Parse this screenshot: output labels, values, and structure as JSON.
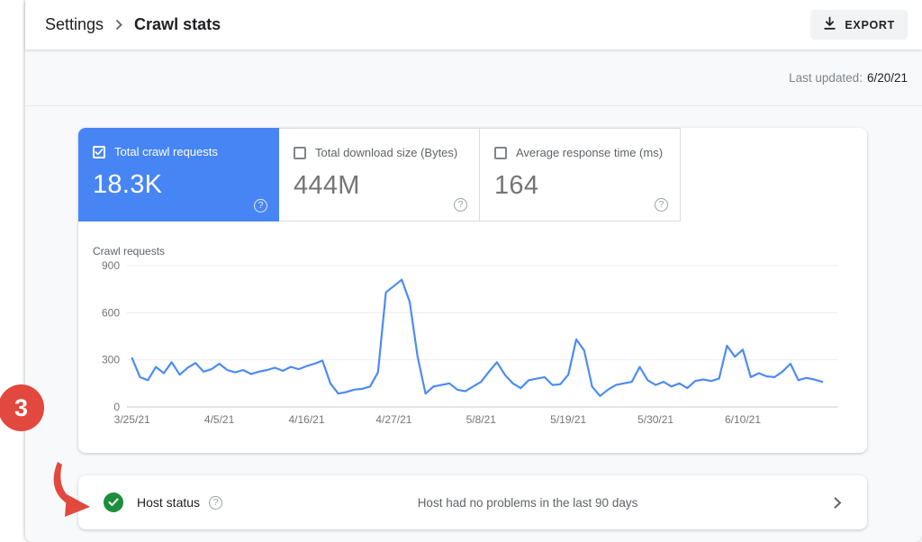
{
  "colors": {
    "accent_blue": "#4785f4",
    "chart_line_blue": "#4c8bf5",
    "success_green": "#1e8e3e",
    "annotation_red": "#e2483d",
    "page_background": "#f8f9fa"
  },
  "icons": {
    "help_glyph": "?"
  },
  "header": {
    "breadcrumb": {
      "parent": "Settings",
      "current": "Crawl stats"
    },
    "export_button": "EXPORT"
  },
  "updated": {
    "label": "Last updated:",
    "value": "6/20/21"
  },
  "metric_cards": [
    {
      "label": "Total crawl requests",
      "value": "18.3K",
      "checked": true,
      "selected": true
    },
    {
      "label": "Total download size (Bytes)",
      "value": "444M",
      "checked": false,
      "selected": false
    },
    {
      "label": "Average response time (ms)",
      "value": "164",
      "checked": false,
      "selected": false
    }
  ],
  "chart_data": {
    "type": "line",
    "title": "Crawl requests",
    "series_name": "Total crawl requests",
    "line_color": "#4c8bf5",
    "grid": true,
    "ylim": [
      0,
      900
    ],
    "yticks": [
      0,
      300,
      600,
      900
    ],
    "xticks": [
      {
        "label": "3/25/21",
        "i": 0
      },
      {
        "label": "4/5/21",
        "i": 11
      },
      {
        "label": "4/16/21",
        "i": 22
      },
      {
        "label": "4/27/21",
        "i": 33
      },
      {
        "label": "5/8/21",
        "i": 44
      },
      {
        "label": "5/19/21",
        "i": 55
      },
      {
        "label": "5/30/21",
        "i": 66
      },
      {
        "label": "6/10/21",
        "i": 77
      }
    ],
    "x": [
      "3/25/21",
      "3/26/21",
      "3/27/21",
      "3/28/21",
      "3/29/21",
      "3/30/21",
      "3/31/21",
      "4/1/21",
      "4/2/21",
      "4/3/21",
      "4/4/21",
      "4/5/21",
      "4/6/21",
      "4/7/21",
      "4/8/21",
      "4/9/21",
      "4/10/21",
      "4/11/21",
      "4/12/21",
      "4/13/21",
      "4/14/21",
      "4/15/21",
      "4/16/21",
      "4/17/21",
      "4/18/21",
      "4/19/21",
      "4/20/21",
      "4/21/21",
      "4/22/21",
      "4/23/21",
      "4/24/21",
      "4/25/21",
      "4/26/21",
      "4/27/21",
      "4/28/21",
      "4/29/21",
      "4/30/21",
      "5/1/21",
      "5/2/21",
      "5/3/21",
      "5/4/21",
      "5/5/21",
      "5/6/21",
      "5/7/21",
      "5/8/21",
      "5/9/21",
      "5/10/21",
      "5/11/21",
      "5/12/21",
      "5/13/21",
      "5/14/21",
      "5/15/21",
      "5/16/21",
      "5/17/21",
      "5/18/21",
      "5/19/21",
      "5/20/21",
      "5/21/21",
      "5/22/21",
      "5/23/21",
      "5/24/21",
      "5/25/21",
      "5/26/21",
      "5/27/21",
      "5/28/21",
      "5/29/21",
      "5/30/21",
      "5/31/21",
      "6/1/21",
      "6/2/21",
      "6/3/21",
      "6/4/21",
      "6/5/21",
      "6/6/21",
      "6/7/21",
      "6/8/21",
      "6/9/21",
      "6/10/21",
      "6/11/21",
      "6/12/21",
      "6/13/21",
      "6/14/21",
      "6/15/21",
      "6/16/21",
      "6/17/21",
      "6/18/21",
      "6/19/21",
      "6/20/21"
    ],
    "values": [
      310,
      190,
      170,
      255,
      215,
      285,
      205,
      250,
      280,
      225,
      240,
      275,
      235,
      220,
      235,
      210,
      225,
      235,
      250,
      230,
      255,
      240,
      260,
      275,
      295,
      150,
      85,
      95,
      110,
      115,
      130,
      220,
      730,
      770,
      810,
      670,
      320,
      85,
      130,
      140,
      150,
      110,
      100,
      130,
      160,
      225,
      285,
      205,
      150,
      120,
      170,
      180,
      190,
      140,
      145,
      205,
      430,
      360,
      130,
      70,
      110,
      140,
      150,
      160,
      255,
      170,
      140,
      160,
      130,
      150,
      120,
      165,
      175,
      165,
      180,
      390,
      320,
      365,
      190,
      215,
      195,
      190,
      225,
      275,
      170,
      185,
      175,
      160
    ]
  },
  "host_status": {
    "title": "Host status",
    "message": "Host had no problems in the last 90 days"
  },
  "annotation": {
    "badge_number": "3"
  }
}
